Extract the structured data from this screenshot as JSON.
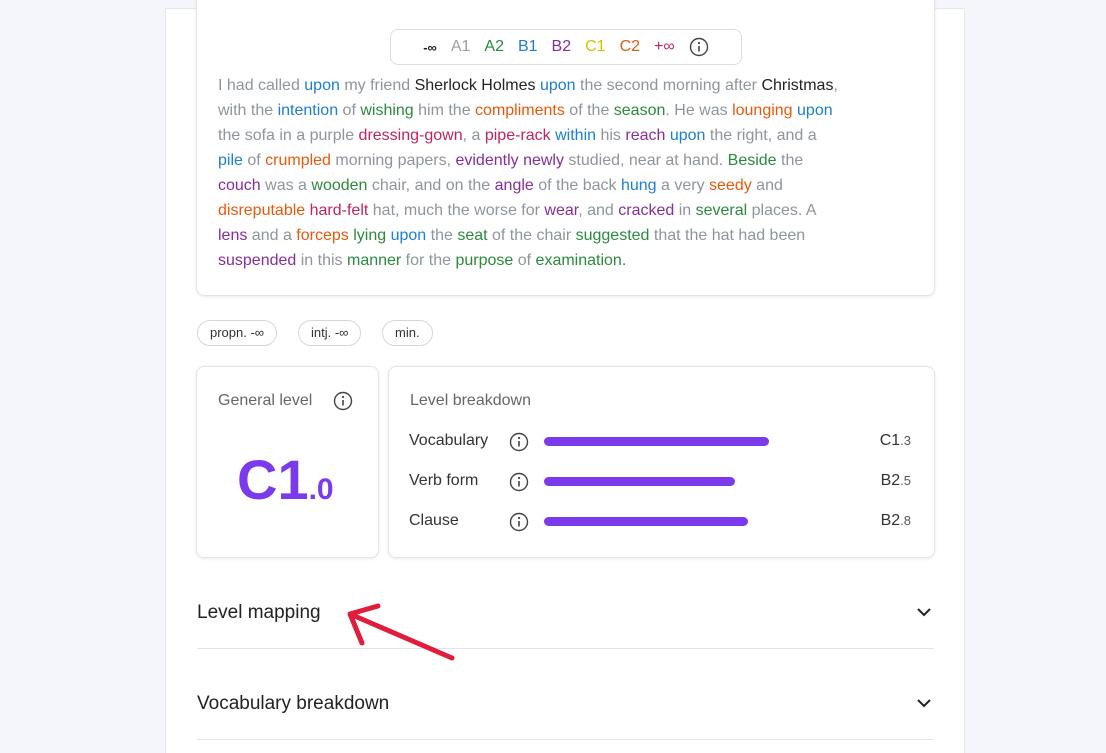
{
  "legend": [
    {
      "label": "-∞",
      "color": "#222222"
    },
    {
      "label": "A1",
      "color": "#9aa0a6"
    },
    {
      "label": "A2",
      "color": "#2b8a3e"
    },
    {
      "label": "B1",
      "color": "#1c7ed6"
    },
    {
      "label": "B2",
      "color": "#862e9c"
    },
    {
      "label": "C1",
      "color": "#d4c200"
    },
    {
      "label": "C2",
      "color": "#e8590c"
    },
    {
      "label": "+∞",
      "color": "#c2255c"
    }
  ],
  "text": {
    "lines": [
      [
        {
          "text": "I had called ",
          "color": "#8e959d"
        },
        {
          "text": "upon",
          "color": "#1c7ed6"
        },
        {
          "text": " my friend ",
          "color": "#8e959d"
        },
        {
          "text": "Sherlock Holmes",
          "color": "#222222"
        },
        {
          "text": " ",
          "color": "#8e959d"
        },
        {
          "text": "upon",
          "color": "#1c7ed6"
        },
        {
          "text": " the second morning after ",
          "color": "#8e959d"
        },
        {
          "text": "Christmas",
          "color": "#222222"
        },
        {
          "text": ",",
          "color": "#8e959d"
        }
      ],
      [
        {
          "text": "with the ",
          "color": "#8e959d"
        },
        {
          "text": "intention",
          "color": "#1c7ed6"
        },
        {
          "text": " of ",
          "color": "#8e959d"
        },
        {
          "text": "wishing",
          "color": "#2b8a3e"
        },
        {
          "text": " him the ",
          "color": "#8e959d"
        },
        {
          "text": "compliments",
          "color": "#e8590c"
        },
        {
          "text": " of the ",
          "color": "#8e959d"
        },
        {
          "text": "season",
          "color": "#2b8a3e"
        },
        {
          "text": ". He was ",
          "color": "#8e959d"
        },
        {
          "text": "lounging",
          "color": "#e8590c"
        },
        {
          "text": " ",
          "color": "#8e959d"
        },
        {
          "text": "upon",
          "color": "#1c7ed6"
        }
      ],
      [
        {
          "text": "the sofa in a purple ",
          "color": "#8e959d"
        },
        {
          "text": "dressing-gown",
          "color": "#c2255c"
        },
        {
          "text": ", a ",
          "color": "#8e959d"
        },
        {
          "text": "pipe-rack",
          "color": "#c2255c"
        },
        {
          "text": " ",
          "color": "#8e959d"
        },
        {
          "text": "within",
          "color": "#1c7ed6"
        },
        {
          "text": " his ",
          "color": "#8e959d"
        },
        {
          "text": "reach",
          "color": "#862e9c"
        },
        {
          "text": " ",
          "color": "#8e959d"
        },
        {
          "text": "upon",
          "color": "#1c7ed6"
        },
        {
          "text": " the right, and a",
          "color": "#8e959d"
        }
      ],
      [
        {
          "text": "pile",
          "color": "#1c7ed6"
        },
        {
          "text": " of ",
          "color": "#8e959d"
        },
        {
          "text": "crumpled",
          "color": "#e8590c"
        },
        {
          "text": " morning papers, ",
          "color": "#8e959d"
        },
        {
          "text": "evidently newly",
          "color": "#862e9c"
        },
        {
          "text": " studied, near at hand. ",
          "color": "#8e959d"
        },
        {
          "text": "Beside",
          "color": "#2b8a3e"
        },
        {
          "text": " the",
          "color": "#8e959d"
        }
      ],
      [
        {
          "text": "couch",
          "color": "#862e9c"
        },
        {
          "text": " was a ",
          "color": "#8e959d"
        },
        {
          "text": "wooden",
          "color": "#2b8a3e"
        },
        {
          "text": " chair, and on the ",
          "color": "#8e959d"
        },
        {
          "text": "angle",
          "color": "#862e9c"
        },
        {
          "text": " of the back ",
          "color": "#8e959d"
        },
        {
          "text": "hung",
          "color": "#1c7ed6"
        },
        {
          "text": " a very ",
          "color": "#8e959d"
        },
        {
          "text": "seedy",
          "color": "#e8590c"
        },
        {
          "text": " and",
          "color": "#8e959d"
        }
      ],
      [
        {
          "text": "disreputable",
          "color": "#e8590c"
        },
        {
          "text": " ",
          "color": "#8e959d"
        },
        {
          "text": "hard-felt",
          "color": "#c2255c"
        },
        {
          "text": " hat, much the worse for ",
          "color": "#8e959d"
        },
        {
          "text": "wear",
          "color": "#862e9c"
        },
        {
          "text": ", and ",
          "color": "#8e959d"
        },
        {
          "text": "cracked",
          "color": "#862e9c"
        },
        {
          "text": " in ",
          "color": "#8e959d"
        },
        {
          "text": "several",
          "color": "#2b8a3e"
        },
        {
          "text": " places. A",
          "color": "#8e959d"
        }
      ],
      [
        {
          "text": "lens",
          "color": "#862e9c"
        },
        {
          "text": " and a ",
          "color": "#8e959d"
        },
        {
          "text": "forceps",
          "color": "#e8590c"
        },
        {
          "text": " ",
          "color": "#8e959d"
        },
        {
          "text": "lying",
          "color": "#2b8a3e"
        },
        {
          "text": " ",
          "color": "#8e959d"
        },
        {
          "text": "upon",
          "color": "#1c7ed6"
        },
        {
          "text": " the ",
          "color": "#8e959d"
        },
        {
          "text": "seat",
          "color": "#2b8a3e"
        },
        {
          "text": " of the chair ",
          "color": "#8e959d"
        },
        {
          "text": "suggested",
          "color": "#2b8a3e"
        },
        {
          "text": " that the hat had been",
          "color": "#8e959d"
        }
      ],
      [
        {
          "text": "suspended",
          "color": "#862e9c"
        },
        {
          "text": " in this ",
          "color": "#8e959d"
        },
        {
          "text": "manner",
          "color": "#2b8a3e"
        },
        {
          "text": " for the ",
          "color": "#8e959d"
        },
        {
          "text": "purpose",
          "color": "#2b8a3e"
        },
        {
          "text": " of ",
          "color": "#8e959d"
        },
        {
          "text": "examination.",
          "color": "#2b8a3e"
        }
      ]
    ]
  },
  "tags": [
    "propn. -∞",
    "intj. -∞",
    "min."
  ],
  "general": {
    "title": "General level",
    "level": "C1",
    "decimal": ".0"
  },
  "breakdown": {
    "title": "Level breakdown",
    "xlim": [
      0,
      6
    ],
    "rows": [
      {
        "label": "Vocabulary",
        "level": "C1",
        "decimal": ".3",
        "value": 5.3
      },
      {
        "label": "Verb form",
        "level": "B2",
        "decimal": ".5",
        "value": 4.5
      },
      {
        "label": "Clause",
        "level": "B2",
        "decimal": ".8",
        "value": 4.8
      }
    ]
  },
  "sections": [
    "Level mapping",
    "Vocabulary breakdown"
  ]
}
